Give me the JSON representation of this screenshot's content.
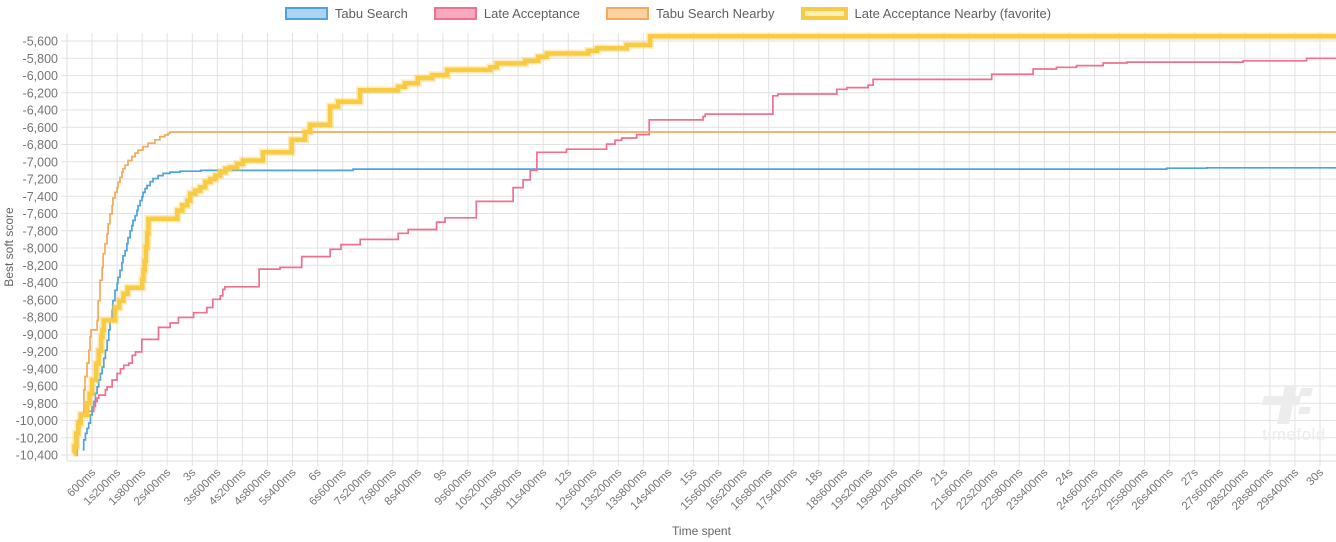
{
  "watermark": {
    "text": "timefold"
  },
  "chart_data": {
    "type": "line",
    "step_style": "step-after",
    "title": "",
    "xlabel": "Time spent",
    "ylabel": "Best soft score",
    "xlim_ms": [
      0,
      30000
    ],
    "ylim": [
      -10400,
      -5600
    ],
    "grid": true,
    "legend_position": "top",
    "colors": {
      "grid": "#e2e2e2",
      "axis_line": "#dedede",
      "tick_text": "#757575",
      "axis_title_text": "#666666",
      "legend_text": "#5f5f5f",
      "watermark": "#ececec"
    },
    "x_tick_ms_step": 600,
    "x_tick_labels": [
      "600ms",
      "1s200ms",
      "1s800ms",
      "2s400ms",
      "3s",
      "3s600ms",
      "4s200ms",
      "4s800ms",
      "5s400ms",
      "6s",
      "6s600ms",
      "7s200ms",
      "7s800ms",
      "8s400ms",
      "9s",
      "9s600ms",
      "10s200ms",
      "10s800ms",
      "11s400ms",
      "12s",
      "12s600ms",
      "13s200ms",
      "13s800ms",
      "14s400ms",
      "15s",
      "15s600ms",
      "16s200ms",
      "16s800ms",
      "17s400ms",
      "18s",
      "18s600ms",
      "19s200ms",
      "19s800ms",
      "20s400ms",
      "21s",
      "21s600ms",
      "22s200ms",
      "22s800ms",
      "23s400ms",
      "24s",
      "24s600ms",
      "25s200ms",
      "25s800ms",
      "26s400ms",
      "27s",
      "27s600ms",
      "28s200ms",
      "28s800ms",
      "29s400ms",
      "30s"
    ],
    "y_ticks": [
      -5600,
      -5800,
      -6000,
      -6200,
      -6400,
      -6600,
      -6800,
      -7000,
      -7200,
      -7400,
      -7600,
      -7800,
      -8000,
      -8200,
      -8400,
      -8600,
      -8800,
      -9000,
      -9200,
      -9400,
      -9600,
      -9800,
      -10000,
      -10200,
      -10400
    ],
    "y_tick_labels": [
      "-5,600",
      "-5,800",
      "-6,000",
      "-6,200",
      "-6,400",
      "-6,600",
      "-6,800",
      "-7,000",
      "-7,200",
      "-7,400",
      "-7,600",
      "-7,800",
      "-8,000",
      "-8,200",
      "-8,400",
      "-8,600",
      "-8,800",
      "-9,000",
      "-9,200",
      "-9,400",
      "-9,600",
      "-9,800",
      "-10,000",
      "-10,200",
      "-10,400"
    ],
    "series": [
      {
        "name": "Tabu Search",
        "color": "#4da3df",
        "fill": "#abd4f2",
        "width": 1.7,
        "legend_border_width": 2,
        "favorite": false,
        "points": [
          [
            375,
            -10340
          ],
          [
            400,
            -10225
          ],
          [
            440,
            -10150
          ],
          [
            480,
            -10090
          ],
          [
            520,
            -10030
          ],
          [
            560,
            -9935
          ],
          [
            600,
            -9840
          ],
          [
            640,
            -9780
          ],
          [
            680,
            -9685
          ],
          [
            720,
            -9610
          ],
          [
            760,
            -9530
          ],
          [
            800,
            -9455
          ],
          [
            840,
            -9380
          ],
          [
            880,
            -9280
          ],
          [
            920,
            -9185
          ],
          [
            960,
            -9070
          ],
          [
            1000,
            -8950
          ],
          [
            1030,
            -8840
          ],
          [
            1080,
            -8725
          ],
          [
            1100,
            -8610
          ],
          [
            1150,
            -8490
          ],
          [
            1200,
            -8410
          ],
          [
            1220,
            -8340
          ],
          [
            1270,
            -8260
          ],
          [
            1315,
            -8170
          ],
          [
            1340,
            -8090
          ],
          [
            1390,
            -8030
          ],
          [
            1435,
            -7950
          ],
          [
            1460,
            -7880
          ],
          [
            1510,
            -7800
          ],
          [
            1555,
            -7740
          ],
          [
            1580,
            -7680
          ],
          [
            1630,
            -7625
          ],
          [
            1675,
            -7565
          ],
          [
            1700,
            -7510
          ],
          [
            1750,
            -7450
          ],
          [
            1795,
            -7405
          ],
          [
            1820,
            -7355
          ],
          [
            1870,
            -7310
          ],
          [
            1915,
            -7275
          ],
          [
            1990,
            -7230
          ],
          [
            2060,
            -7195
          ],
          [
            2180,
            -7160
          ],
          [
            2300,
            -7135
          ],
          [
            2465,
            -7120
          ],
          [
            2705,
            -7110
          ],
          [
            3200,
            -7100
          ],
          [
            6850,
            -7085
          ],
          [
            26330,
            -7075
          ],
          [
            27290,
            -7070
          ],
          [
            30600,
            -7070
          ]
        ]
      },
      {
        "name": "Late Acceptance",
        "color": "#f0708f",
        "fill": "#f8a9bd",
        "width": 1.7,
        "legend_border_width": 2,
        "favorite": false,
        "points": [
          [
            200,
            -10400
          ],
          [
            240,
            -10110
          ],
          [
            280,
            -9995
          ],
          [
            320,
            -9935
          ],
          [
            400,
            -9895
          ],
          [
            640,
            -9840
          ],
          [
            680,
            -9780
          ],
          [
            720,
            -9740
          ],
          [
            760,
            -9705
          ],
          [
            920,
            -9645
          ],
          [
            960,
            -9610
          ],
          [
            1080,
            -9530
          ],
          [
            1200,
            -9455
          ],
          [
            1280,
            -9400
          ],
          [
            1360,
            -9360
          ],
          [
            1480,
            -9335
          ],
          [
            1560,
            -9245
          ],
          [
            1640,
            -9205
          ],
          [
            1790,
            -9060
          ],
          [
            2190,
            -8920
          ],
          [
            2470,
            -8870
          ],
          [
            2670,
            -8805
          ],
          [
            3030,
            -8750
          ],
          [
            3350,
            -8690
          ],
          [
            3490,
            -8595
          ],
          [
            3670,
            -8555
          ],
          [
            3730,
            -8480
          ],
          [
            3780,
            -8450
          ],
          [
            4600,
            -8245
          ],
          [
            5100,
            -8225
          ],
          [
            5620,
            -8100
          ],
          [
            6300,
            -8015
          ],
          [
            6560,
            -7960
          ],
          [
            7020,
            -7900
          ],
          [
            7930,
            -7830
          ],
          [
            8170,
            -7785
          ],
          [
            8850,
            -7700
          ],
          [
            9050,
            -7650
          ],
          [
            9800,
            -7460
          ],
          [
            10680,
            -7300
          ],
          [
            10920,
            -7210
          ],
          [
            11090,
            -7100
          ],
          [
            11250,
            -6890
          ],
          [
            11960,
            -6855
          ],
          [
            12920,
            -6795
          ],
          [
            13120,
            -6750
          ],
          [
            13280,
            -6725
          ],
          [
            13640,
            -6685
          ],
          [
            13940,
            -6515
          ],
          [
            15230,
            -6475
          ],
          [
            15280,
            -6448
          ],
          [
            16900,
            -6235
          ],
          [
            17020,
            -6215
          ],
          [
            18430,
            -6160
          ],
          [
            18670,
            -6140
          ],
          [
            19180,
            -6112
          ],
          [
            19300,
            -6045
          ],
          [
            22140,
            -5985
          ],
          [
            23130,
            -5925
          ],
          [
            23690,
            -5905
          ],
          [
            24170,
            -5885
          ],
          [
            24810,
            -5855
          ],
          [
            25380,
            -5845
          ],
          [
            28160,
            -5830
          ],
          [
            29680,
            -5800
          ],
          [
            30600,
            -5795
          ]
        ]
      },
      {
        "name": "Tabu Search Nearby",
        "color": "#f6a95a",
        "fill": "#fbd2a2",
        "width": 1.7,
        "legend_border_width": 2,
        "favorite": false,
        "points": [
          [
            215,
            -10315
          ],
          [
            260,
            -10100
          ],
          [
            310,
            -9915
          ],
          [
            405,
            -9645
          ],
          [
            430,
            -9490
          ],
          [
            480,
            -9335
          ],
          [
            525,
            -9185
          ],
          [
            550,
            -9030
          ],
          [
            575,
            -8950
          ],
          [
            720,
            -8840
          ],
          [
            745,
            -8610
          ],
          [
            790,
            -8375
          ],
          [
            840,
            -8225
          ],
          [
            865,
            -8065
          ],
          [
            910,
            -7950
          ],
          [
            960,
            -7835
          ],
          [
            985,
            -7720
          ],
          [
            1030,
            -7605
          ],
          [
            1080,
            -7510
          ],
          [
            1100,
            -7420
          ],
          [
            1150,
            -7355
          ],
          [
            1200,
            -7300
          ],
          [
            1220,
            -7240
          ],
          [
            1270,
            -7180
          ],
          [
            1315,
            -7120
          ],
          [
            1340,
            -7080
          ],
          [
            1390,
            -7040
          ],
          [
            1460,
            -6985
          ],
          [
            1555,
            -6940
          ],
          [
            1630,
            -6900
          ],
          [
            1700,
            -6865
          ],
          [
            1820,
            -6825
          ],
          [
            1940,
            -6785
          ],
          [
            2105,
            -6745
          ],
          [
            2225,
            -6710
          ],
          [
            2345,
            -6690
          ],
          [
            2420,
            -6670
          ],
          [
            2465,
            -6655
          ],
          [
            30600,
            -6655
          ]
        ]
      },
      {
        "name": "Late Acceptance Nearby (favorite)",
        "color": "#f9cb45",
        "fill": "#fceeb9",
        "width": 4.5,
        "legend_border_width": 4,
        "favorite": true,
        "points": [
          [
            150,
            -10380
          ],
          [
            180,
            -10300
          ],
          [
            220,
            -10150
          ],
          [
            270,
            -10030
          ],
          [
            330,
            -9935
          ],
          [
            480,
            -9800
          ],
          [
            540,
            -9690
          ],
          [
            600,
            -9530
          ],
          [
            700,
            -9340
          ],
          [
            760,
            -9190
          ],
          [
            820,
            -9030
          ],
          [
            850,
            -8950
          ],
          [
            880,
            -8840
          ],
          [
            1150,
            -8690
          ],
          [
            1250,
            -8610
          ],
          [
            1350,
            -8530
          ],
          [
            1450,
            -8460
          ],
          [
            1800,
            -8370
          ],
          [
            1830,
            -8260
          ],
          [
            1860,
            -8150
          ],
          [
            1890,
            -7990
          ],
          [
            1920,
            -7830
          ],
          [
            1950,
            -7660
          ],
          [
            2640,
            -7565
          ],
          [
            2760,
            -7505
          ],
          [
            2880,
            -7450
          ],
          [
            2950,
            -7370
          ],
          [
            3070,
            -7335
          ],
          [
            3190,
            -7295
          ],
          [
            3310,
            -7235
          ],
          [
            3430,
            -7200
          ],
          [
            3550,
            -7160
          ],
          [
            3670,
            -7120
          ],
          [
            3790,
            -7080
          ],
          [
            3900,
            -7065
          ],
          [
            4070,
            -7025
          ],
          [
            4215,
            -6985
          ],
          [
            4690,
            -6890
          ],
          [
            5380,
            -6745
          ],
          [
            5700,
            -6655
          ],
          [
            5820,
            -6570
          ],
          [
            6300,
            -6360
          ],
          [
            6490,
            -6305
          ],
          [
            7015,
            -6170
          ],
          [
            7925,
            -6130
          ],
          [
            8090,
            -6090
          ],
          [
            8400,
            -6030
          ],
          [
            8740,
            -5995
          ],
          [
            9100,
            -5935
          ],
          [
            10130,
            -5905
          ],
          [
            10290,
            -5860
          ],
          [
            10970,
            -5828
          ],
          [
            11280,
            -5782
          ],
          [
            11490,
            -5745
          ],
          [
            12480,
            -5712
          ],
          [
            12690,
            -5685
          ],
          [
            13400,
            -5645
          ],
          [
            13960,
            -5545
          ],
          [
            30600,
            -5545
          ]
        ]
      }
    ]
  }
}
